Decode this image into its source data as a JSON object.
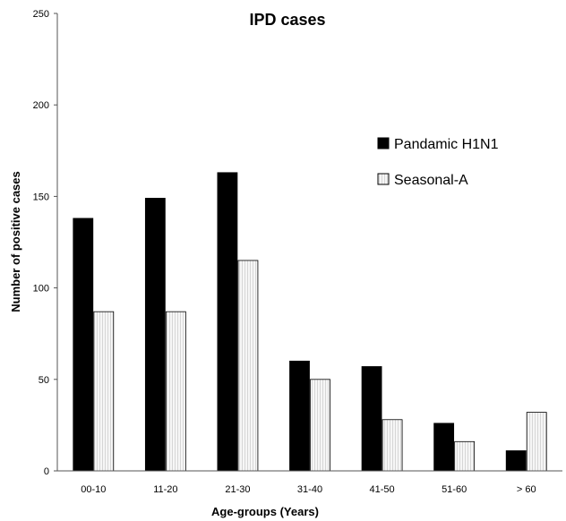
{
  "chart_data": {
    "type": "bar",
    "title": "IPD cases",
    "xlabel": "Age-groups (Years)",
    "ylabel": "Number of positive cases",
    "categories": [
      "00-10",
      "11-20",
      "21-30",
      "31-40",
      "41-50",
      "51-60",
      "> 60"
    ],
    "series": [
      {
        "name": "Pandamic H1N1",
        "values": [
          138,
          149,
          163,
          60,
          57,
          26,
          11
        ],
        "color": "#000000"
      },
      {
        "name": "Seasonal-A",
        "values": [
          87,
          87,
          115,
          50,
          28,
          16,
          32
        ],
        "color": "#eeeeee"
      }
    ],
    "ylim": [
      0,
      250
    ],
    "yticks": [
      0,
      50,
      100,
      150,
      200,
      250
    ],
    "grid": false,
    "legend_position": "right"
  }
}
